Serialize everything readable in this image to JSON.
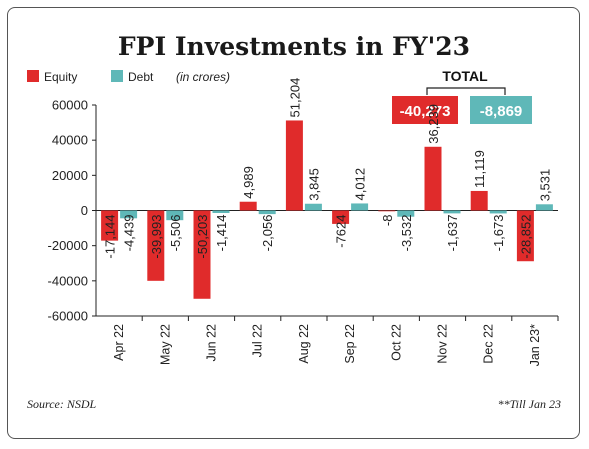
{
  "colors": {
    "equity": "#e02b2b",
    "debt": "#5fb8b8",
    "axis": "#222222"
  },
  "title": {
    "main": "FPI Investments in FY'23"
  },
  "legend": {
    "equity": "Equity",
    "debt": "Debt",
    "unit": "(in crores)"
  },
  "total": {
    "label": "TOTAL",
    "equity": "-40,273",
    "debt": "-8,869"
  },
  "footer": {
    "source": "Source: NSDL",
    "note": "**Till Jan 23"
  },
  "chart_data": {
    "type": "bar",
    "categories": [
      "Apr 22",
      "May 22",
      "Jun 22",
      "Jul 22",
      "Aug 22",
      "Sep 22",
      "Oct 22",
      "Nov 22",
      "Dec 22",
      "Jan 23*"
    ],
    "series": [
      {
        "name": "Equity",
        "values": [
          -17144,
          -39993,
          -50203,
          4989,
          51204,
          -7624,
          -8,
          36239,
          11119,
          -28852
        ],
        "labels": [
          "-17,144",
          "-39,993",
          "-50,203",
          "4,989",
          "51,204",
          "-7624",
          "-8",
          "36,239",
          "11,119",
          "-28,852"
        ]
      },
      {
        "name": "Debt",
        "values": [
          -4439,
          -5506,
          -1414,
          -2056,
          3845,
          4012,
          -3532,
          -1637,
          -1673,
          3531
        ],
        "labels": [
          "-4,439",
          "-5,506",
          "-1,414",
          "-2,056",
          "3,845",
          "4,012",
          "-3,532",
          "-1,637",
          "-1,673",
          "3,531"
        ]
      }
    ],
    "yticks": [
      "60000",
      "40000",
      "20000",
      "0",
      "-20000",
      "-40000",
      "-60000"
    ],
    "ylim": [
      -60000,
      60000
    ],
    "grid": false,
    "legend_position": "top-left"
  }
}
